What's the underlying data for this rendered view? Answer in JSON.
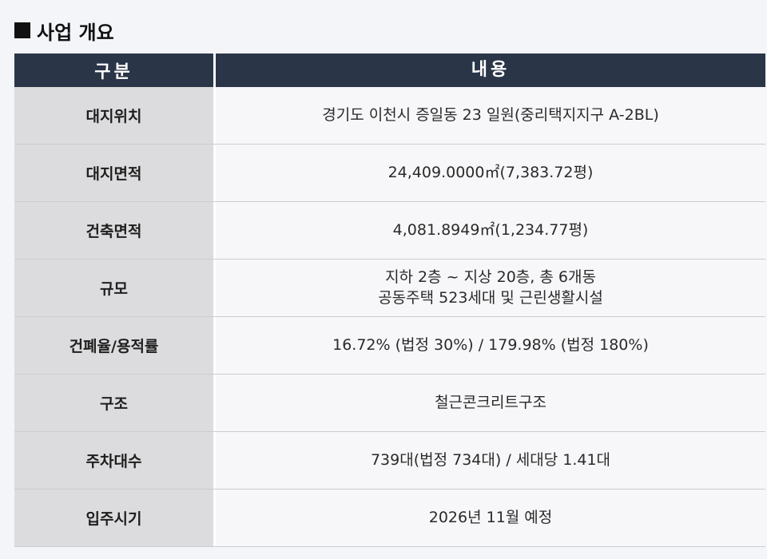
{
  "section": {
    "title": "사업 개요"
  },
  "table": {
    "header": {
      "label": "구분",
      "value": "내용"
    },
    "rows": [
      {
        "label": "대지위치",
        "lines": [
          "경기도 이천시 증일동 23 일원(중리택지지구 A-2BL)"
        ]
      },
      {
        "label": "대지면적",
        "lines": [
          "24,409.0000㎡(7,383.72평)"
        ]
      },
      {
        "label": "건축면적",
        "lines": [
          "4,081.8949㎡(1,234.77평)"
        ]
      },
      {
        "label": "규모",
        "lines": [
          "지하 2층 ~ 지상 20층, 총 6개동",
          "공동주택 523세대 및 근린생활시설"
        ]
      },
      {
        "label": "건폐율/용적률",
        "lines": [
          "16.72% (법정 30%) / 179.98% (법정 180%)"
        ]
      },
      {
        "label": "구조",
        "lines": [
          "철근콘크리트구조"
        ]
      },
      {
        "label": "주차대수",
        "lines": [
          "739대(법정 734대) / 세대당 1.41대"
        ]
      },
      {
        "label": "입주시기",
        "lines": [
          "2026년 11월 예정"
        ]
      }
    ]
  },
  "colors": {
    "header_bg": "#2b3548",
    "label_bg": "#dcdcde",
    "value_bg": "#f7f7f9"
  }
}
